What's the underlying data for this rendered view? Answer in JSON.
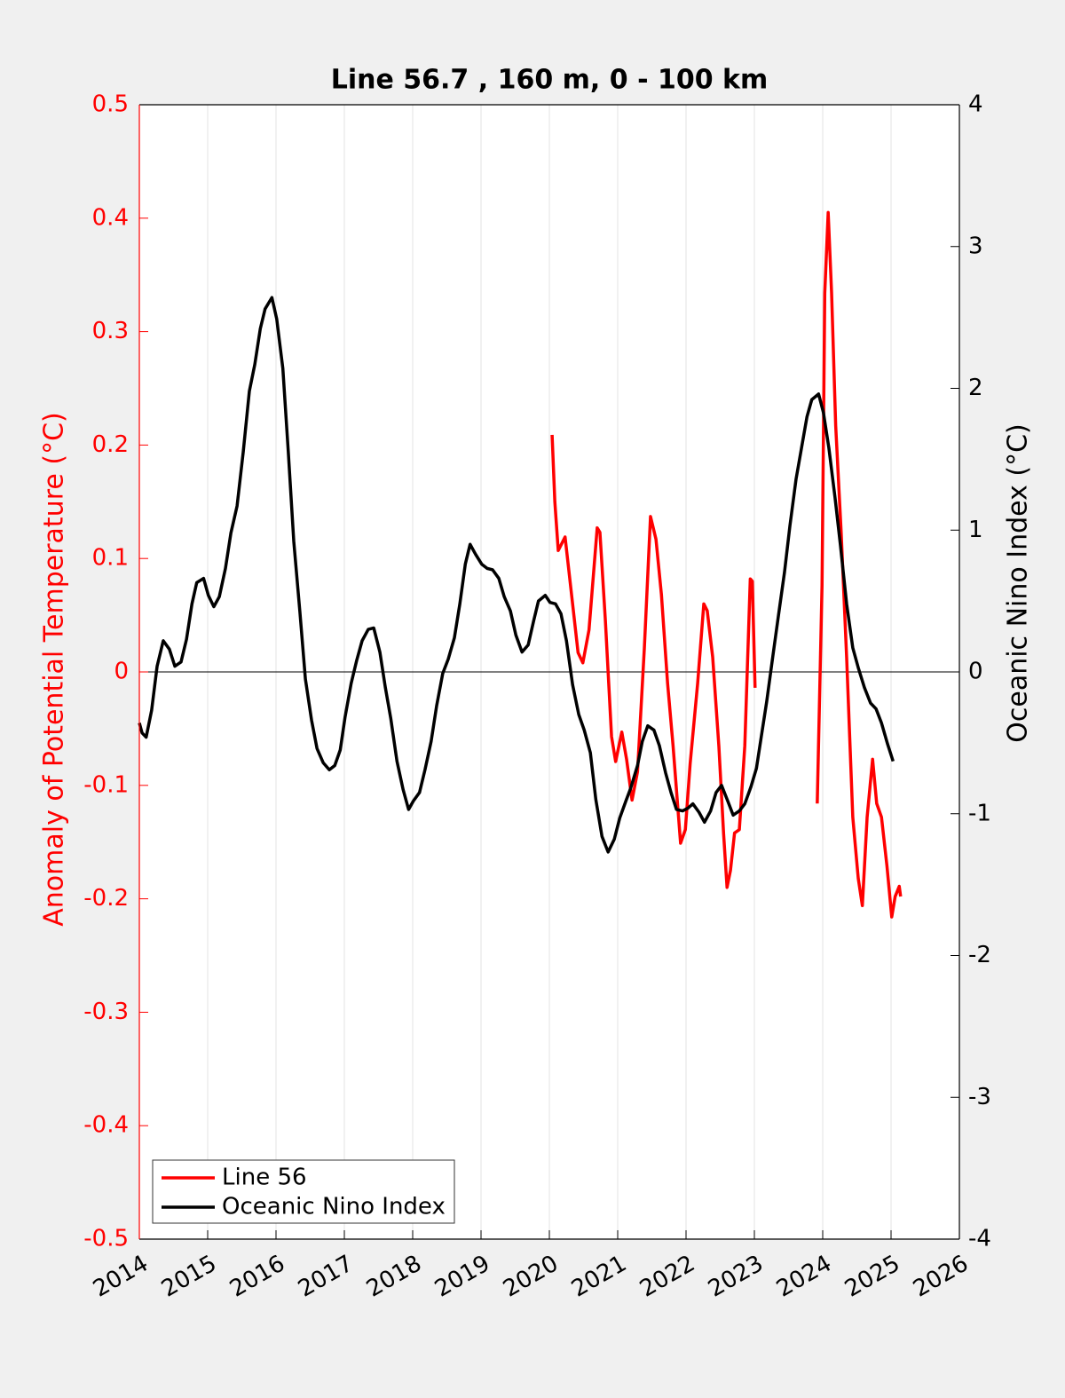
{
  "chart_data": {
    "type": "line",
    "title": "Line 56.7 , 160 m, 0 - 100 km",
    "ylabel": "Anomaly of Potential Temperature (°C)",
    "y2label": "Oceanic Nino Index (°C)",
    "y_color": "#ff0000",
    "xlim": [
      2014,
      2026
    ],
    "xticks": [
      2014,
      2015,
      2016,
      2017,
      2018,
      2019,
      2020,
      2021,
      2022,
      2023,
      2024,
      2025,
      2026
    ],
    "ylim": [
      -0.5,
      0.5
    ],
    "yticks": [
      -0.5,
      -0.4,
      -0.3,
      -0.2,
      -0.1,
      0,
      0.1,
      0.2,
      0.3,
      0.4,
      0.5
    ],
    "y2lim": [
      -4,
      4
    ],
    "y2ticks": [
      -4,
      -3,
      -2,
      -1,
      0,
      1,
      2,
      3,
      4
    ],
    "grid": true,
    "legend": "lower left",
    "series": [
      {
        "name": "Line 56",
        "color": "#ff0000",
        "axis": "y",
        "x": [
          2020.04,
          2020.08,
          2020.13,
          2020.23,
          2020.34,
          2020.42,
          2020.49,
          2020.58,
          2020.7,
          2020.74,
          2020.82,
          2020.91,
          2020.97,
          2021.06,
          2021.13,
          2021.21,
          2021.29,
          2021.39,
          2021.48,
          2021.56,
          2021.64,
          2021.73,
          2021.81,
          2021.92,
          2021.99,
          2022.06,
          2022.17,
          2022.26,
          2022.31,
          2022.39,
          2022.48,
          2022.55,
          2022.6,
          2022.65,
          2022.71,
          2022.78,
          2022.86,
          2022.94,
          2022.97,
          2023.01,
          2023.45,
          2023.92,
          2023.99,
          2024.03,
          2024.08,
          2024.13,
          2024.19,
          2024.27,
          2024.35,
          2024.44,
          2024.52,
          2024.58,
          2024.65,
          2024.73,
          2024.79,
          2024.86,
          2024.94,
          2025.01,
          2025.06,
          2025.12,
          2025.14
        ],
        "values": [
          0.209,
          0.15,
          0.107,
          0.119,
          0.06,
          0.017,
          0.008,
          0.037,
          0.127,
          0.123,
          0.045,
          -0.057,
          -0.079,
          -0.053,
          -0.077,
          -0.113,
          -0.088,
          0.021,
          0.137,
          0.117,
          0.068,
          -0.01,
          -0.065,
          -0.151,
          -0.139,
          -0.081,
          -0.01,
          0.06,
          0.054,
          0.013,
          -0.065,
          -0.143,
          -0.19,
          -0.175,
          -0.142,
          -0.139,
          -0.065,
          0.082,
          0.08,
          -0.014,
          null,
          -0.116,
          0.076,
          0.334,
          0.405,
          0.334,
          0.217,
          0.123,
          0.013,
          -0.128,
          -0.182,
          -0.206,
          -0.128,
          -0.077,
          -0.116,
          -0.128,
          -0.171,
          -0.216,
          -0.198,
          -0.189,
          -0.198
        ]
      },
      {
        "name": "Oceanic Nino Index",
        "color": "#000000",
        "axis": "y2",
        "x": [
          2014.0,
          2014.04,
          2014.1,
          2014.18,
          2014.26,
          2014.35,
          2014.44,
          2014.52,
          2014.61,
          2014.69,
          2014.77,
          2014.84,
          2014.94,
          2015.01,
          2015.09,
          2015.17,
          2015.26,
          2015.34,
          2015.43,
          2015.52,
          2015.61,
          2015.69,
          2015.77,
          2015.84,
          2015.94,
          2016.01,
          2016.1,
          2016.18,
          2016.26,
          2016.35,
          2016.43,
          2016.52,
          2016.6,
          2016.69,
          2016.78,
          2016.86,
          2016.94,
          2017.01,
          2017.1,
          2017.18,
          2017.26,
          2017.35,
          2017.43,
          2017.52,
          2017.6,
          2017.68,
          2017.77,
          2017.86,
          2017.94,
          2018.01,
          2018.1,
          2018.18,
          2018.27,
          2018.35,
          2018.44,
          2018.52,
          2018.61,
          2018.69,
          2018.77,
          2018.84,
          2018.92,
          2019.01,
          2019.09,
          2019.17,
          2019.26,
          2019.34,
          2019.43,
          2019.51,
          2019.6,
          2019.69,
          2019.77,
          2019.84,
          2019.94,
          2020.01,
          2020.09,
          2020.17,
          2020.25,
          2020.34,
          2020.43,
          2020.51,
          2020.6,
          2020.68,
          2020.77,
          2020.86,
          2020.95,
          2021.03,
          2021.12,
          2021.19,
          2021.29,
          2021.36,
          2021.44,
          2021.53,
          2021.61,
          2021.7,
          2021.78,
          2021.86,
          2021.95,
          2022.03,
          2022.1,
          2022.19,
          2022.27,
          2022.36,
          2022.44,
          2022.52,
          2022.61,
          2022.69,
          2022.78,
          2022.86,
          2022.95,
          2023.03,
          2023.1,
          2023.18,
          2023.27,
          2023.35,
          2023.44,
          2023.52,
          2023.61,
          2023.69,
          2023.77,
          2023.84,
          2023.94,
          2024.01,
          2024.09,
          2024.18,
          2024.26,
          2024.35,
          2024.44,
          2024.52,
          2024.61,
          2024.7,
          2024.78,
          2024.86,
          2024.95,
          2025.03
        ],
        "values": [
          -0.36,
          -0.43,
          -0.46,
          -0.27,
          0.04,
          0.22,
          0.16,
          0.04,
          0.07,
          0.23,
          0.48,
          0.63,
          0.66,
          0.54,
          0.46,
          0.53,
          0.73,
          0.98,
          1.17,
          1.55,
          1.98,
          2.17,
          2.42,
          2.56,
          2.64,
          2.49,
          2.14,
          1.55,
          0.92,
          0.42,
          -0.05,
          -0.34,
          -0.54,
          -0.64,
          -0.69,
          -0.66,
          -0.55,
          -0.32,
          -0.08,
          0.08,
          0.22,
          0.3,
          0.31,
          0.14,
          -0.11,
          -0.33,
          -0.63,
          -0.83,
          -0.97,
          -0.91,
          -0.85,
          -0.69,
          -0.49,
          -0.24,
          -0.01,
          0.09,
          0.24,
          0.48,
          0.76,
          0.9,
          0.83,
          0.76,
          0.73,
          0.72,
          0.66,
          0.53,
          0.43,
          0.26,
          0.14,
          0.19,
          0.36,
          0.5,
          0.54,
          0.49,
          0.48,
          0.41,
          0.22,
          -0.09,
          -0.3,
          -0.41,
          -0.57,
          -0.9,
          -1.16,
          -1.27,
          -1.18,
          -1.03,
          -0.91,
          -0.82,
          -0.66,
          -0.49,
          -0.38,
          -0.41,
          -0.52,
          -0.71,
          -0.85,
          -0.97,
          -0.98,
          -0.96,
          -0.93,
          -0.99,
          -1.06,
          -0.98,
          -0.85,
          -0.8,
          -0.91,
          -1.01,
          -0.98,
          -0.93,
          -0.81,
          -0.68,
          -0.46,
          -0.21,
          0.11,
          0.39,
          0.7,
          1.03,
          1.36,
          1.58,
          1.8,
          1.92,
          1.96,
          1.83,
          1.58,
          1.23,
          0.89,
          0.48,
          0.17,
          0.03,
          -0.11,
          -0.22,
          -0.26,
          -0.36,
          -0.51,
          -0.63
        ]
      }
    ]
  }
}
